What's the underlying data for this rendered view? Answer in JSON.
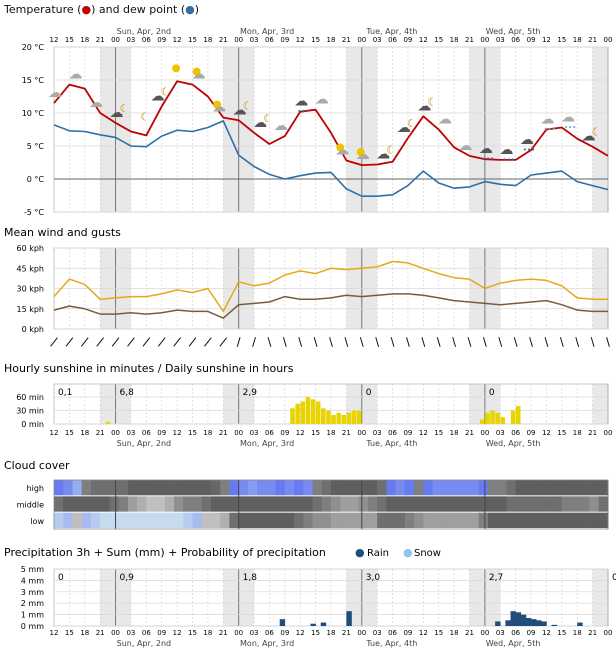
{
  "days": [
    "Sun, Apr, 2nd",
    "Mon, Apr, 3rd",
    "Tue, Apr, 4th",
    "Wed, Apr, 5th"
  ],
  "hour_ticks": [
    "12",
    "15",
    "18",
    "21",
    "00",
    "03",
    "06",
    "09",
    "12",
    "15",
    "18",
    "21",
    "00",
    "03",
    "06",
    "09",
    "12",
    "15",
    "18",
    "21",
    "00",
    "03",
    "06",
    "09",
    "12",
    "15",
    "18",
    "21",
    "00",
    "03",
    "06",
    "09",
    "12",
    "15",
    "18",
    "21",
    "00"
  ],
  "temperature": {
    "title": "Temperature (●) and dew point (●)",
    "title_parts": [
      "Temperature (",
      ") and dew point (",
      ")"
    ],
    "y_ticks": [
      "20 °C",
      "15 °C",
      "10 °C",
      "5 °C",
      "0 °C",
      "-5 °C"
    ]
  },
  "wind": {
    "title": "Mean wind and gusts",
    "y_ticks": [
      "60 kph",
      "45 kph",
      "30 kph",
      "15 kph",
      "0 kph"
    ]
  },
  "sunshine": {
    "title": "Hourly sunshine in minutes / Daily sunshine in hours",
    "y_ticks": [
      "60 min",
      "30 min",
      "0 min"
    ],
    "daily_totals": [
      "0,1",
      "6,8",
      "2,9",
      "0",
      "0"
    ]
  },
  "cloud": {
    "title": "Cloud cover",
    "row_labels": [
      "high",
      "middle",
      "low"
    ]
  },
  "precipitation": {
    "title": "Precipitation 3h + Sum (mm) + Probability of precipitation",
    "legend": [
      "Rain",
      "Snow"
    ],
    "y_ticks": [
      "5 mm",
      "4 mm",
      "3 mm",
      "2 mm",
      "1 mm",
      "0 mm"
    ],
    "daily_totals": [
      "0",
      "0,9",
      "1,8",
      "3,0",
      "2,7",
      "0"
    ]
  },
  "colors": {
    "temperature": "#c00000",
    "dew_point": "#2f6fa6",
    "wind_mean": "#7a5c3a",
    "wind_gusts": "#e6a817",
    "sunshine": "#e8d400",
    "rain": "#1f4e79",
    "snow": "#8fc7e8",
    "night_shade": "#e8e8e8"
  },
  "chart_data": [
    {
      "type": "line",
      "name": "temperature",
      "x": [
        0,
        3,
        6,
        9,
        12,
        15,
        18,
        21,
        24,
        27,
        30,
        33,
        36,
        39,
        42,
        45,
        48,
        51,
        54,
        57,
        60,
        63,
        66,
        69,
        72,
        75,
        78,
        81,
        84,
        87,
        90,
        93,
        96,
        99,
        102,
        105,
        108
      ],
      "series": [
        {
          "values": [
            11.5,
            14.3,
            13.7,
            10,
            8.5,
            7.2,
            6.6,
            11,
            14.8,
            14.3,
            12.5,
            9.3,
            8.9,
            7,
            5.3,
            6.5,
            10.2,
            10.5,
            7,
            2.8,
            2.1,
            2.2,
            2.6,
            6.2,
            9.5,
            7.5,
            4.8,
            3.5,
            3,
            2.9,
            2.9,
            4.4,
            7.5,
            7.8,
            6.1,
            4.9,
            3.5
          ]
        },
        {
          "values": [
            8.2,
            7.3,
            7.2,
            6.7,
            6.3,
            5,
            4.9,
            6.5,
            7.4,
            7.2,
            7.8,
            8.8,
            3.6,
            1.9,
            0.7,
            0,
            0.5,
            0.9,
            1,
            -1.5,
            -2.6,
            -2.6,
            -2.4,
            -1,
            1.2,
            -0.6,
            -1.4,
            -1.2,
            -0.4,
            -0.8,
            -1,
            0.6,
            0.9,
            1.2,
            -0.4,
            -1,
            -1.6
          ]
        }
      ],
      "ylim": [
        -5,
        20
      ],
      "icons": [
        "cloud",
        "cloud",
        "cloud",
        "moon-cloud",
        "moon",
        "moon-cloud",
        "sun",
        "sun-cloud",
        "sun-cloud",
        "moon-cloud",
        "moon-cloud",
        "cloud",
        "cloud-rain",
        "cloud",
        "sun-cloud",
        "sun-cloud",
        "moon-cloud",
        "moon-cloud",
        "moon-cloud",
        "cloud",
        "cloud",
        "cloud-rain",
        "cloud-rain",
        "cloud-rain",
        "cloud-snow",
        "cloud-snow",
        "moon-cloud"
      ]
    },
    {
      "type": "line",
      "name": "wind",
      "x": [
        0,
        3,
        6,
        9,
        12,
        15,
        18,
        21,
        24,
        27,
        30,
        33,
        36,
        39,
        42,
        45,
        48,
        51,
        54,
        57,
        60,
        63,
        66,
        69,
        72,
        75,
        78,
        81,
        84,
        87,
        90,
        93,
        96,
        99,
        102,
        105,
        108
      ],
      "series": [
        {
          "values": [
            14,
            17,
            15,
            11,
            11,
            12,
            11,
            12,
            14,
            13,
            13,
            8,
            18,
            19,
            20,
            24,
            22,
            22,
            23,
            25,
            24,
            25,
            26,
            26,
            25,
            23,
            21,
            20,
            19,
            18,
            19,
            20,
            21,
            18,
            14,
            13,
            13
          ]
        },
        {
          "values": [
            24,
            37,
            33,
            22,
            23,
            24,
            24,
            26,
            29,
            27,
            30,
            13,
            35,
            32,
            34,
            40,
            43,
            41,
            45,
            44,
            45,
            46,
            50,
            49,
            45,
            41,
            38,
            37,
            30,
            34,
            36,
            37,
            36,
            32,
            23,
            22,
            22
          ]
        }
      ],
      "ylim": [
        0,
        60
      ]
    },
    {
      "type": "bar",
      "name": "sunshine",
      "values": [
        0,
        0,
        0,
        0,
        0,
        0,
        0,
        0,
        0,
        0,
        5,
        0,
        0,
        0,
        0,
        0,
        0,
        0,
        0,
        0,
        0,
        0,
        0,
        0,
        0,
        0,
        0,
        0,
        0,
        0,
        0,
        0,
        0,
        0,
        0,
        0,
        0,
        0,
        0,
        0,
        0,
        0,
        0,
        0,
        0,
        0,
        35,
        45,
        50,
        60,
        55,
        50,
        35,
        30,
        20,
        25,
        20,
        25,
        30,
        30,
        0,
        0,
        0,
        0,
        0,
        0,
        0,
        0,
        0,
        0,
        0,
        0,
        0,
        0,
        0,
        0,
        0,
        0,
        0,
        0,
        0,
        0,
        0,
        10,
        25,
        30,
        25,
        15,
        0,
        30,
        40,
        0,
        0,
        0,
        0,
        0,
        0,
        0,
        0,
        0,
        0,
        0,
        0,
        0,
        0,
        0,
        0,
        0,
        0,
        0,
        0,
        0,
        0,
        0
      ],
      "ylim": [
        0,
        60
      ]
    },
    {
      "type": "heatmap",
      "name": "cloud_cover",
      "rows": [
        "high",
        "middle",
        "low"
      ],
      "values": [
        [
          70,
          60,
          40,
          80,
          90,
          90,
          90,
          90,
          100,
          100,
          100,
          100,
          100,
          100,
          100,
          100,
          100,
          95,
          80,
          70,
          60,
          50,
          60,
          60,
          70,
          60,
          70,
          60,
          80,
          90,
          100,
          100,
          100,
          100,
          100,
          90,
          70,
          60,
          70,
          80,
          70,
          60,
          60,
          60,
          60,
          60,
          70,
          80,
          80,
          90,
          100,
          100,
          100,
          100,
          100,
          100,
          100,
          100,
          100,
          100
        ],
        [
          90,
          100,
          100,
          100,
          100,
          100,
          90,
          80,
          60,
          50,
          40,
          40,
          50,
          70,
          80,
          80,
          90,
          100,
          100,
          100,
          100,
          100,
          100,
          100,
          100,
          100,
          100,
          100,
          90,
          80,
          70,
          60,
          60,
          70,
          80,
          90,
          100,
          100,
          100,
          100,
          100,
          100,
          100,
          100,
          100,
          100,
          100,
          100,
          100,
          90,
          90,
          90,
          90,
          90,
          90,
          80,
          80,
          80,
          70,
          90
        ],
        [
          20,
          30,
          40,
          30,
          20,
          10,
          10,
          10,
          10,
          10,
          10,
          10,
          10,
          10,
          20,
          30,
          40,
          40,
          50,
          90,
          100,
          100,
          100,
          100,
          100,
          100,
          90,
          80,
          70,
          70,
          60,
          60,
          60,
          60,
          60,
          90,
          90,
          90,
          80,
          70,
          60,
          60,
          60,
          60,
          60,
          60,
          80,
          100,
          100,
          100,
          100,
          100,
          100,
          100,
          100,
          100,
          100,
          100,
          100,
          100
        ]
      ]
    },
    {
      "type": "bar",
      "name": "precipitation",
      "values": [
        0,
        0,
        0,
        0,
        0,
        0,
        0,
        0,
        0,
        0,
        0,
        0,
        0,
        0,
        0,
        0,
        0,
        0,
        0,
        0,
        0,
        0,
        0,
        0,
        0,
        0,
        0,
        0,
        0,
        0,
        0,
        0,
        0,
        0,
        0,
        0,
        0,
        0,
        0,
        0,
        0,
        0,
        0,
        0,
        0.6,
        0,
        0,
        0,
        0,
        0,
        0.2,
        0,
        0.3,
        0,
        0,
        0,
        0,
        1.3,
        0,
        0,
        0,
        0,
        0,
        0,
        0,
        0,
        0,
        0,
        0,
        0,
        0,
        0,
        0,
        0,
        0,
        0,
        0,
        0,
        0,
        0,
        0,
        0,
        0,
        0,
        0,
        0,
        0.4,
        0,
        0.5,
        1.3,
        1.2,
        1.0,
        0.7,
        0.6,
        0.5,
        0.4,
        0,
        0.1,
        0,
        0,
        0,
        0,
        0.3,
        0,
        0,
        0,
        0,
        0,
        0,
        0,
        0,
        0
      ],
      "ylim": [
        0,
        5
      ]
    }
  ]
}
